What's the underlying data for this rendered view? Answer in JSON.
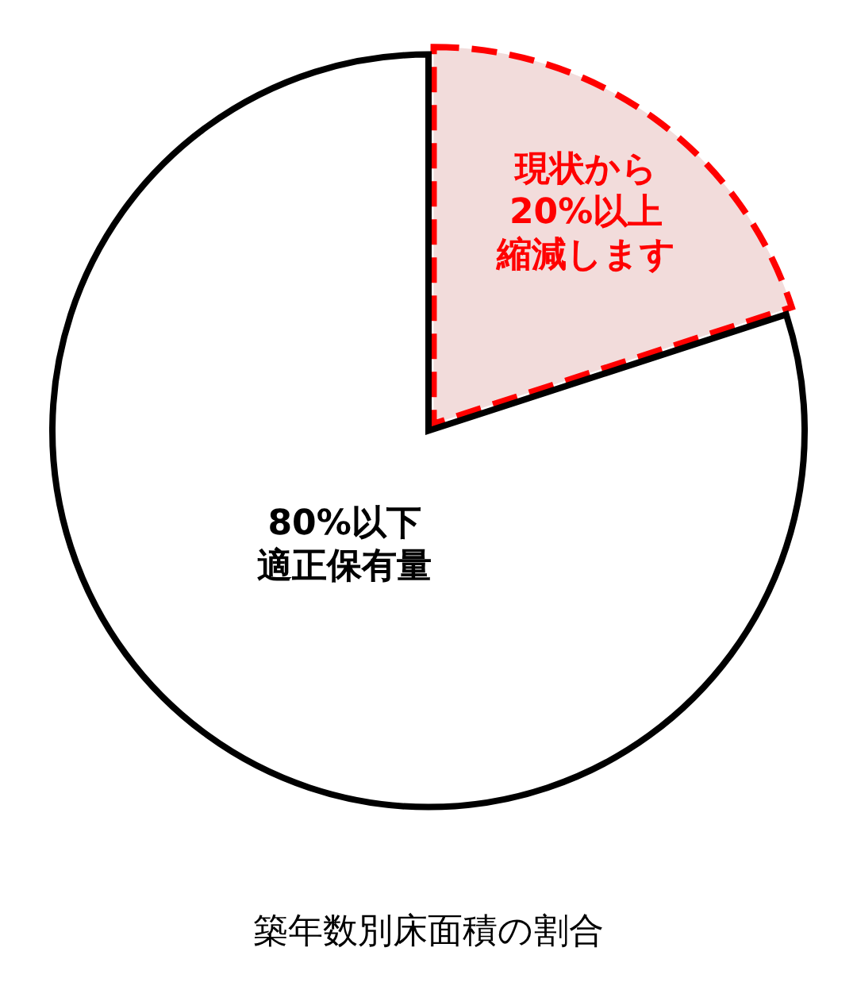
{
  "chart_data": {
    "type": "pie",
    "title": "築年数別床面積の割合",
    "categories": [
      "現状から20%以上縮減します",
      "80%以下適正保有量"
    ],
    "values": [
      20,
      80
    ],
    "colors": [
      "#f2dcdb",
      "#ffffff"
    ],
    "legend": false
  }
}
